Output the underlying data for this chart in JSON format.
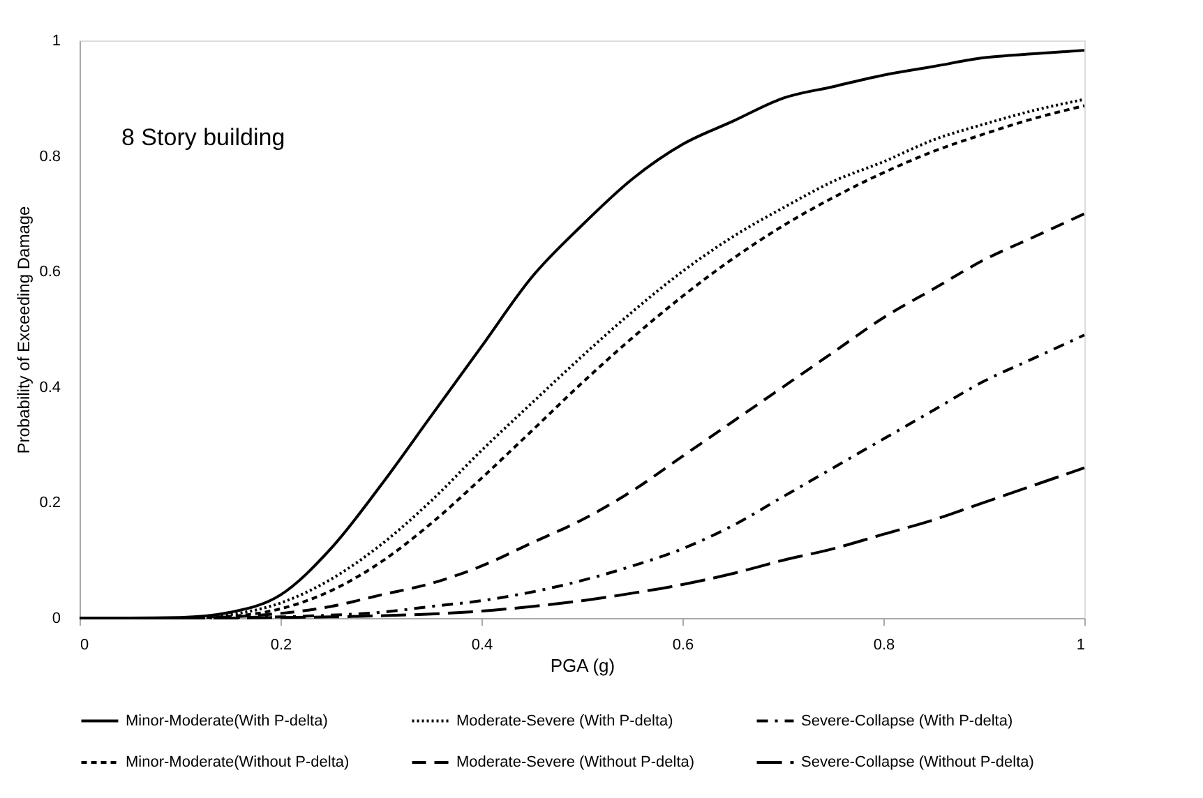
{
  "chart_data": {
    "type": "line",
    "xlabel": "PGA (g)",
    "ylabel": "Probability of Exceeding Damage",
    "annotations": [
      "8 Story building"
    ],
    "x": [
      0,
      0.05,
      0.1,
      0.15,
      0.2,
      0.25,
      0.3,
      0.35,
      0.4,
      0.45,
      0.5,
      0.55,
      0.6,
      0.65,
      0.7,
      0.75,
      0.8,
      0.85,
      0.9,
      0.95,
      1
    ],
    "series": [
      {
        "name": "Minor-Moderate(With P-delta)",
        "color": "#000000",
        "line_style": "solid",
        "values": [
          0,
          0,
          0.001,
          0.01,
          0.04,
          0.12,
          0.23,
          0.35,
          0.47,
          0.59,
          0.68,
          0.76,
          0.82,
          0.86,
          0.9,
          0.92,
          0.94,
          0.955,
          0.97,
          0.977,
          0.983
        ]
      },
      {
        "name": "Moderate-Severe (With P-delta)",
        "color": "#000000",
        "line_style": "dotted",
        "values": [
          0,
          0,
          0,
          0.006,
          0.026,
          0.067,
          0.127,
          0.203,
          0.29,
          0.372,
          0.453,
          0.53,
          0.6,
          0.66,
          0.71,
          0.756,
          0.79,
          0.828,
          0.855,
          0.879,
          0.898
        ]
      },
      {
        "name": "Severe-Collapse (With P-delta)",
        "color": "#000000",
        "line_style": "dashdot",
        "values": [
          0,
          0,
          0,
          0.001,
          0.002,
          0.005,
          0.01,
          0.02,
          0.03,
          0.045,
          0.065,
          0.09,
          0.12,
          0.16,
          0.21,
          0.26,
          0.31,
          0.36,
          0.41,
          0.45,
          0.49
        ]
      },
      {
        "name": "Minor-Moderate(Without P-delta)",
        "color": "#000000",
        "line_style": "dashed",
        "values": [
          0,
          0,
          0,
          0.003,
          0.016,
          0.047,
          0.097,
          0.164,
          0.242,
          0.324,
          0.407,
          0.485,
          0.557,
          0.622,
          0.679,
          0.728,
          0.771,
          0.808,
          0.838,
          0.865,
          0.887
        ]
      },
      {
        "name": "Moderate-Severe (Without P-delta)",
        "color": "#000000",
        "line_style": "mediumdashed",
        "values": [
          0,
          0,
          0,
          0.002,
          0.008,
          0.02,
          0.04,
          0.06,
          0.09,
          0.13,
          0.17,
          0.22,
          0.28,
          0.34,
          0.4,
          0.46,
          0.52,
          0.57,
          0.62,
          0.66,
          0.7
        ]
      },
      {
        "name": "Severe-Collapse (Without P-delta)",
        "color": "#000000",
        "line_style": "longdashed",
        "values": [
          0,
          0,
          0,
          0,
          0.001,
          0.002,
          0.004,
          0.007,
          0.012,
          0.02,
          0.03,
          0.043,
          0.058,
          0.077,
          0.1,
          0.12,
          0.145,
          0.17,
          0.2,
          0.23,
          0.26
        ]
      }
    ],
    "xlim": [
      0,
      1
    ],
    "xticks": [
      0,
      0.2,
      0.4,
      0.6,
      0.8,
      1
    ],
    "ylim": [
      0,
      1
    ],
    "yticks": [
      0,
      0.2,
      0.4,
      0.6,
      0.8,
      1
    ],
    "grid": false,
    "legend": "bottom"
  }
}
